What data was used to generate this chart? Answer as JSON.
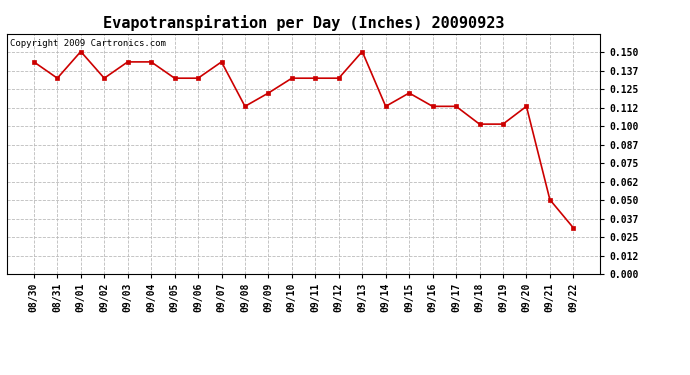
{
  "title": "Evapotranspiration per Day (Inches) 20090923",
  "copyright_text": "Copyright 2009 Cartronics.com",
  "x_labels": [
    "08/30",
    "08/31",
    "09/01",
    "09/02",
    "09/03",
    "09/04",
    "09/05",
    "09/06",
    "09/07",
    "09/08",
    "09/09",
    "09/10",
    "09/11",
    "09/12",
    "09/13",
    "09/14",
    "09/15",
    "09/16",
    "09/17",
    "09/18",
    "09/19",
    "09/20",
    "09/21",
    "09/22"
  ],
  "y_values": [
    0.143,
    0.132,
    0.15,
    0.132,
    0.143,
    0.143,
    0.132,
    0.132,
    0.143,
    0.113,
    0.122,
    0.132,
    0.132,
    0.132,
    0.15,
    0.113,
    0.122,
    0.113,
    0.113,
    0.101,
    0.101,
    0.113,
    0.05,
    0.031
  ],
  "line_color": "#cc0000",
  "marker_color": "#cc0000",
  "marker_style": "s",
  "marker_size": 3,
  "background_color": "#ffffff",
  "plot_bg_color": "#ffffff",
  "grid_color": "#bbbbbb",
  "ylim": [
    0.0,
    0.162
  ],
  "yticks": [
    0.0,
    0.012,
    0.025,
    0.037,
    0.05,
    0.062,
    0.075,
    0.087,
    0.1,
    0.112,
    0.125,
    0.137,
    0.15
  ],
  "title_fontsize": 11,
  "tick_fontsize": 7,
  "copyright_fontsize": 6.5,
  "linewidth": 1.2
}
